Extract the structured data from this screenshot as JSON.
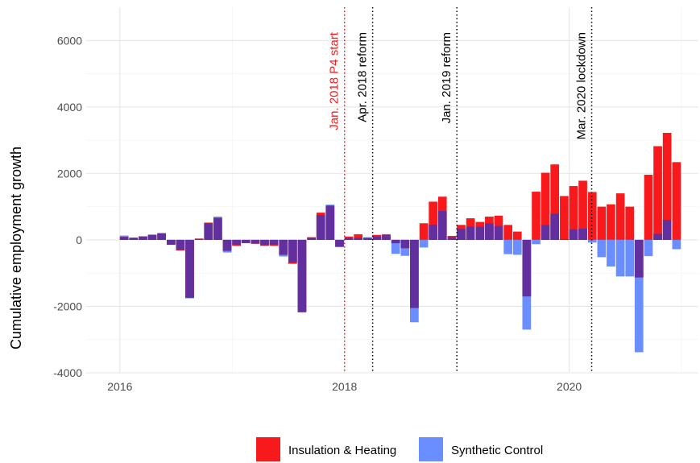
{
  "chart_data": {
    "type": "bar",
    "y_label": "Cumulative employment growth",
    "x": [
      2016,
      2016.083,
      2016.167,
      2016.25,
      2016.333,
      2016.417,
      2016.5,
      2016.583,
      2016.667,
      2016.75,
      2016.833,
      2016.917,
      2017,
      2017.083,
      2017.167,
      2017.25,
      2017.333,
      2017.417,
      2017.5,
      2017.583,
      2017.667,
      2017.75,
      2017.833,
      2017.917,
      2018,
      2018.083,
      2018.167,
      2018.25,
      2018.333,
      2018.417,
      2018.5,
      2018.583,
      2018.667,
      2018.75,
      2018.833,
      2018.917,
      2019,
      2019.083,
      2019.167,
      2019.25,
      2019.333,
      2019.417,
      2019.5,
      2019.583,
      2019.667,
      2019.75,
      2019.833,
      2019.917,
      2020,
      2020.083,
      2020.167,
      2020.25,
      2020.333,
      2020.417,
      2020.5,
      2020.583,
      2020.667,
      2020.75,
      2020.833,
      2020.917
    ],
    "series": [
      {
        "name": "Insulation & Heating",
        "color": "#f8191c",
        "values": [
          90,
          70,
          100,
          150,
          200,
          -150,
          -320,
          -1740,
          40,
          520,
          660,
          -330,
          -180,
          -100,
          -120,
          -180,
          -180,
          -450,
          -720,
          -2180,
          80,
          820,
          1030,
          -200,
          100,
          170,
          60,
          150,
          170,
          -100,
          -250,
          -2050,
          500,
          1150,
          1300,
          120,
          450,
          650,
          540,
          700,
          730,
          450,
          250,
          -1700,
          1450,
          2020,
          2270,
          1320,
          1620,
          1780,
          1440,
          1000,
          1070,
          1400,
          1000,
          -1130,
          1960,
          2820,
          3220,
          2340
        ]
      },
      {
        "name": "Synthetic Control",
        "color": "#6a8dff",
        "values": [
          130,
          50,
          110,
          160,
          200,
          -140,
          -300,
          -1760,
          30,
          500,
          700,
          -380,
          -150,
          -90,
          -110,
          -160,
          -150,
          -500,
          -680,
          -2170,
          70,
          750,
          1060,
          -220,
          60,
          60,
          80,
          100,
          140,
          -420,
          -480,
          -2480,
          -230,
          460,
          870,
          80,
          330,
          400,
          400,
          500,
          420,
          -430,
          -450,
          -2700,
          -130,
          450,
          790,
          20,
          320,
          340,
          -80,
          -520,
          -800,
          -1100,
          -1100,
          -3380,
          -490,
          180,
          600,
          -280
        ]
      }
    ],
    "overlap_color": "#62309e",
    "annotations": [
      {
        "x": 2018,
        "text": "Jan. 2018 P4 start",
        "color": "#f8191c"
      },
      {
        "x": 2018.25,
        "text": "Apr. 2018 reform",
        "color": "#000000"
      },
      {
        "x": 2019,
        "text": "Jan. 2019 reform",
        "color": "#000000"
      },
      {
        "x": 2020.2,
        "text": "Mar. 2020 lockdown",
        "color": "#000000"
      }
    ],
    "xlim": [
      2015.7,
      2021.15
    ],
    "xticks": [
      2016,
      2018,
      2020
    ],
    "x_minor_grid": [
      2017,
      2019,
      2021
    ],
    "ylim": [
      -4000,
      7000
    ],
    "yticks": [
      -4000,
      -2000,
      0,
      2000,
      4000,
      6000
    ],
    "y_minor_grid": [
      -3000,
      -1000,
      1000,
      3000,
      5000
    ],
    "grid": true,
    "legend": "bottom"
  }
}
